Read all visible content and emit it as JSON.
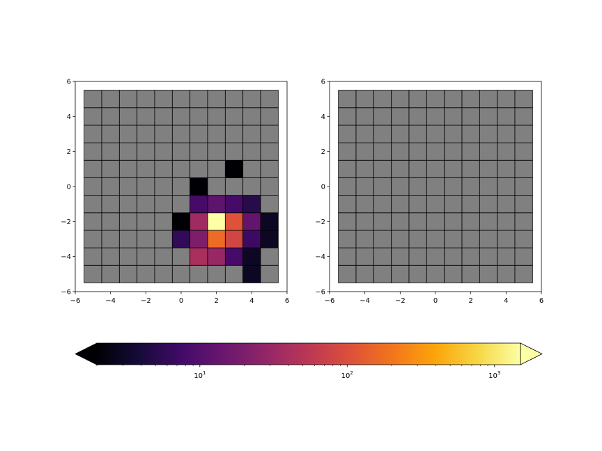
{
  "chart_data": {
    "panels": [
      {
        "type": "heatmap",
        "xlim": [
          -6,
          6
        ],
        "ylim": [
          -6,
          6
        ],
        "xticks": [
          -6,
          -4,
          -2,
          0,
          2,
          4,
          6
        ],
        "yticks": [
          -6,
          -4,
          -2,
          0,
          2,
          4,
          6
        ],
        "xtick_labels": [
          "−6",
          "−4",
          "−2",
          "0",
          "2",
          "4",
          "6"
        ],
        "ytick_labels": [
          "−6",
          "−4",
          "−2",
          "0",
          "2",
          "4",
          "6"
        ],
        "bin_edges": [
          -5.5,
          -4.5,
          -3.5,
          -2.5,
          -1.5,
          -0.5,
          0.5,
          1.5,
          2.5,
          3.5,
          4.5,
          5.5
        ],
        "masked_color": "#808080",
        "cells": [
          {
            "x": 3,
            "y": 1,
            "value": 1
          },
          {
            "x": 1,
            "y": 0,
            "value": 1
          },
          {
            "x": 1,
            "y": -1,
            "value": 8
          },
          {
            "x": 2,
            "y": -1,
            "value": 12
          },
          {
            "x": 3,
            "y": -1,
            "value": 8
          },
          {
            "x": 4,
            "y": -1,
            "value": 5
          },
          {
            "x": 0,
            "y": -2,
            "value": 1
          },
          {
            "x": 1,
            "y": -2,
            "value": 35
          },
          {
            "x": 2,
            "y": -2,
            "value": 1500
          },
          {
            "x": 3,
            "y": -2,
            "value": 110
          },
          {
            "x": 4,
            "y": -2,
            "value": 13
          },
          {
            "x": 5,
            "y": -2,
            "value": 3
          },
          {
            "x": 0,
            "y": -3,
            "value": 6
          },
          {
            "x": 1,
            "y": -3,
            "value": 20
          },
          {
            "x": 2,
            "y": -3,
            "value": 170
          },
          {
            "x": 3,
            "y": -3,
            "value": 80
          },
          {
            "x": 4,
            "y": -3,
            "value": 7
          },
          {
            "x": 5,
            "y": -3,
            "value": 3
          },
          {
            "x": 1,
            "y": -4,
            "value": 40
          },
          {
            "x": 2,
            "y": -4,
            "value": 30
          },
          {
            "x": 3,
            "y": -4,
            "value": 8
          },
          {
            "x": 4,
            "y": -4,
            "value": 3
          },
          {
            "x": 4,
            "y": -5,
            "value": 3
          }
        ]
      },
      {
        "type": "heatmap",
        "xlim": [
          -6,
          6
        ],
        "ylim": [
          -6,
          6
        ],
        "xticks": [
          -6,
          -4,
          -2,
          0,
          2,
          4,
          6
        ],
        "yticks": [
          -6,
          -4,
          -2,
          0,
          2,
          4,
          6
        ],
        "xtick_labels": [
          "−6",
          "−4",
          "−2",
          "0",
          "2",
          "4",
          "6"
        ],
        "ytick_labels": [
          "−6",
          "−4",
          "−2",
          "0",
          "2",
          "4",
          "6"
        ],
        "bin_edges": [
          -5.5,
          -4.5,
          -3.5,
          -2.5,
          -1.5,
          -0.5,
          0.5,
          1.5,
          2.5,
          3.5,
          4.5,
          5.5
        ],
        "masked_color": "#808080",
        "cells": []
      }
    ],
    "colorbar": {
      "cmap": "inferno",
      "scale": "log",
      "range": [
        2,
        1500
      ],
      "extend": "both",
      "orientation": "horizontal",
      "major_ticks": [
        10,
        100,
        1000
      ],
      "tick_labels": [
        {
          "base": "10",
          "exp": "1"
        },
        {
          "base": "10",
          "exp": "2"
        },
        {
          "base": "10",
          "exp": "3"
        }
      ]
    }
  }
}
